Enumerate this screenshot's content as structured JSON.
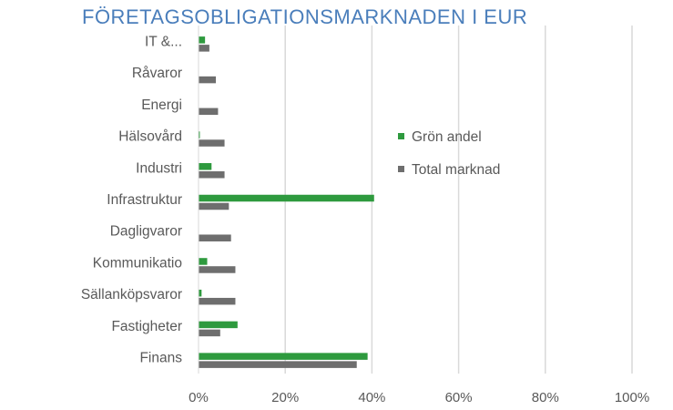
{
  "chart_data": {
    "type": "bar",
    "orientation": "horizontal",
    "title": "FÖRETAGSOBLIGATIONSMARKNADEN I EUR",
    "categories": [
      "IT &...",
      "Råvaror",
      "Energi",
      "Hälsovård",
      "Industri",
      "Infrastruktur",
      "Dagligvaror",
      "Kommunikatio",
      "Sällanköpsvaror",
      "Fastigheter",
      "Finans"
    ],
    "series": [
      {
        "name": "Grön andel",
        "color": "#2e9a3e",
        "values": [
          1.5,
          0,
          0,
          0.3,
          3,
          40.5,
          0,
          2,
          0.7,
          9,
          39
        ]
      },
      {
        "name": "Total marknad",
        "color": "#6e6e6e",
        "values": [
          2.5,
          4,
          4.5,
          6,
          6,
          7,
          7.5,
          8.5,
          8.5,
          5,
          36.5
        ]
      }
    ],
    "xlim": [
      0,
      100
    ],
    "xticks": [
      "0%",
      "20%",
      "40%",
      "60%",
      "80%",
      "100%"
    ],
    "xtick_values": [
      0,
      20,
      40,
      60,
      80,
      100
    ],
    "grid": true,
    "legend_position": "right",
    "colors": {
      "title": "#4a7ebb",
      "grid": "#d9d9d9",
      "text": "#595959"
    }
  }
}
